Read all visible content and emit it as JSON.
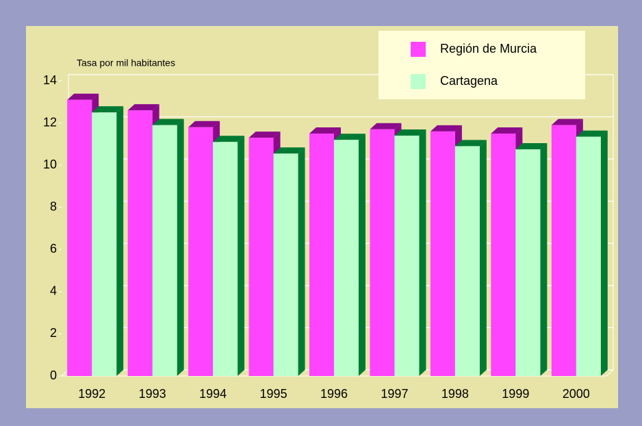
{
  "chart_data": {
    "type": "bar3d",
    "y_axis_label": "Tasa por mil habitantes",
    "categories": [
      "1992",
      "1993",
      "1994",
      "1995",
      "1996",
      "1997",
      "1998",
      "1999",
      "2000"
    ],
    "series": [
      {
        "name": "Región de Murcia",
        "color": "#ff44ff",
        "dark": "#8a0a8a",
        "values": [
          13.1,
          12.6,
          11.8,
          11.3,
          11.5,
          11.7,
          11.6,
          11.5,
          11.9
        ]
      },
      {
        "name": "Cartagena",
        "color": "#bbffcc",
        "dark": "#007a33",
        "values": [
          12.5,
          11.9,
          11.1,
          10.55,
          11.2,
          11.4,
          10.9,
          10.75,
          11.35
        ]
      }
    ],
    "ylim": [
      0,
      14
    ],
    "yticks": [
      0,
      2,
      4,
      6,
      8,
      10,
      12,
      14
    ],
    "grid": true,
    "legend": "top-right"
  }
}
